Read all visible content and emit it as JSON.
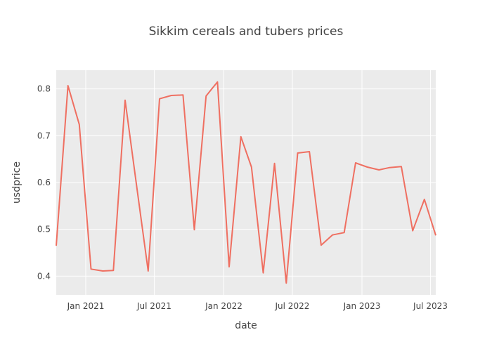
{
  "chart_data": {
    "type": "line",
    "title": "Sikkim cereals and tubers prices",
    "xlabel": "date",
    "ylabel": "usdprice",
    "x_range": [
      "2020-10-15",
      "2023-07-15"
    ],
    "y_range": [
      0.36,
      0.84
    ],
    "x_ticks": [
      {
        "date": "2021-01-01",
        "label": "Jan 2021"
      },
      {
        "date": "2021-07-01",
        "label": "Jul 2021"
      },
      {
        "date": "2022-01-01",
        "label": "Jan 2022"
      },
      {
        "date": "2022-07-01",
        "label": "Jul 2022"
      },
      {
        "date": "2023-01-01",
        "label": "Jan 2023"
      },
      {
        "date": "2023-07-01",
        "label": "Jul 2023"
      }
    ],
    "y_ticks": [
      0.4,
      0.5,
      0.6,
      0.7,
      0.8
    ],
    "grid": true,
    "line_color": "#ef6f61",
    "plot_background": "#ebebeb",
    "series": [
      {
        "x": [
          "2020-10-15",
          "2020-11-15",
          "2020-12-15",
          "2021-01-15",
          "2021-02-15",
          "2021-03-15",
          "2021-04-15",
          "2021-05-15",
          "2021-06-15",
          "2021-07-15",
          "2021-08-15",
          "2021-09-15",
          "2021-10-15",
          "2021-11-15",
          "2021-12-15",
          "2022-01-15",
          "2022-02-15",
          "2022-03-15",
          "2022-04-15",
          "2022-05-15",
          "2022-06-15",
          "2022-07-15",
          "2022-08-15",
          "2022-09-15",
          "2022-10-15",
          "2022-11-15",
          "2022-12-15",
          "2023-01-15",
          "2023-02-15",
          "2023-03-15",
          "2023-04-15",
          "2023-05-15",
          "2023-06-15",
          "2023-07-15"
        ],
        "y": [
          0.465,
          0.807,
          0.724,
          0.415,
          0.411,
          0.412,
          0.776,
          0.596,
          0.411,
          0.779,
          0.786,
          0.787,
          0.499,
          0.785,
          0.815,
          0.42,
          0.698,
          0.633,
          0.407,
          0.641,
          0.385,
          0.663,
          0.666,
          0.466,
          0.488,
          0.493,
          0.642,
          0.633,
          0.627,
          0.632,
          0.634,
          0.497,
          0.564,
          0.487
        ]
      }
    ]
  }
}
